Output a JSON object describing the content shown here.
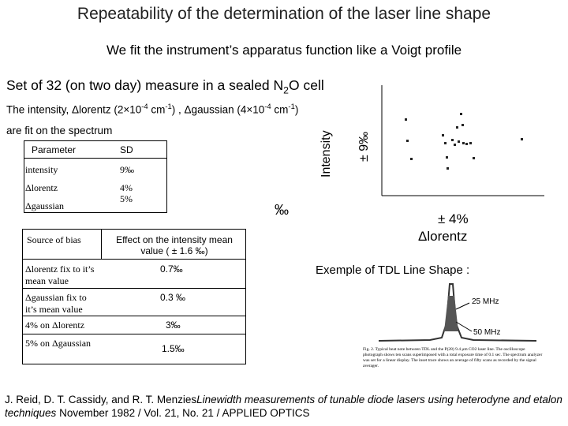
{
  "title": "Repeatability of the determination of the laser line shape",
  "subtitle": "We fit the instrument’s apparatus function like a Voigt profile",
  "set_line": [
    "Set of 32 (on two day) measure in a sealed N",
    "2",
    "O cell"
  ],
  "intensity_line": [
    "The intensity, Δlorentz (2×10",
    "-4",
    " cm",
    "-1",
    ") , Δgaussian (4×10",
    "-4",
    " cm",
    "-1",
    ")"
  ],
  "fit_line": "are fit on the spectrum",
  "table1": {
    "header": [
      "Parameter",
      "SD"
    ],
    "rows": [
      [
        "intensity",
        "9‰"
      ],
      [
        "Δlorentz",
        "4%"
      ],
      [
        "Δgaussian",
        "5%"
      ]
    ]
  },
  "table2": {
    "header": [
      "Source of bias",
      "Effect on the intensity mean value ( ± 1.6 ‰)"
    ],
    "rows": [
      [
        "Δlorentz fix to it’s mean value",
        "0.7‰"
      ],
      [
        "Δgaussian fix to it’s mean value",
        "0.3 ‰"
      ],
      [
        "4% on Δlorentz",
        "3‰"
      ],
      [
        "5% on Δgaussian",
        "1.5‰"
      ]
    ]
  },
  "plot": {
    "y_label": "Intensity",
    "y_range": "± 9‰",
    "x_unit": "‰",
    "x_range": "± 4%",
    "x_label": "Δlorentz"
  },
  "figure": {
    "heading": "Exemple of TDL Line Shape :",
    "label_a": "25 MHz",
    "label_b": "50 MHz",
    "caption": "Fig. 2. Typical beat note between TDL and the P(28) 9.4 μm CO2 laser line. The oscilloscope photograph shows ten scans superimposed with a total exposure time of 0.1 sec. The spectrum analyzer was set for a linear display. The inset trace shows an average of fifty scans as recorded by the signal averager."
  },
  "reference": [
    "J. Reid, D. T. Cassidy, and R. T. Menzies",
    "Linewidth measurements of tunable diode lasers using heterodyne and etalon techniques",
    " November 1982 / Vol. 21, No. 21 / APPLIED OPTICS"
  ]
}
